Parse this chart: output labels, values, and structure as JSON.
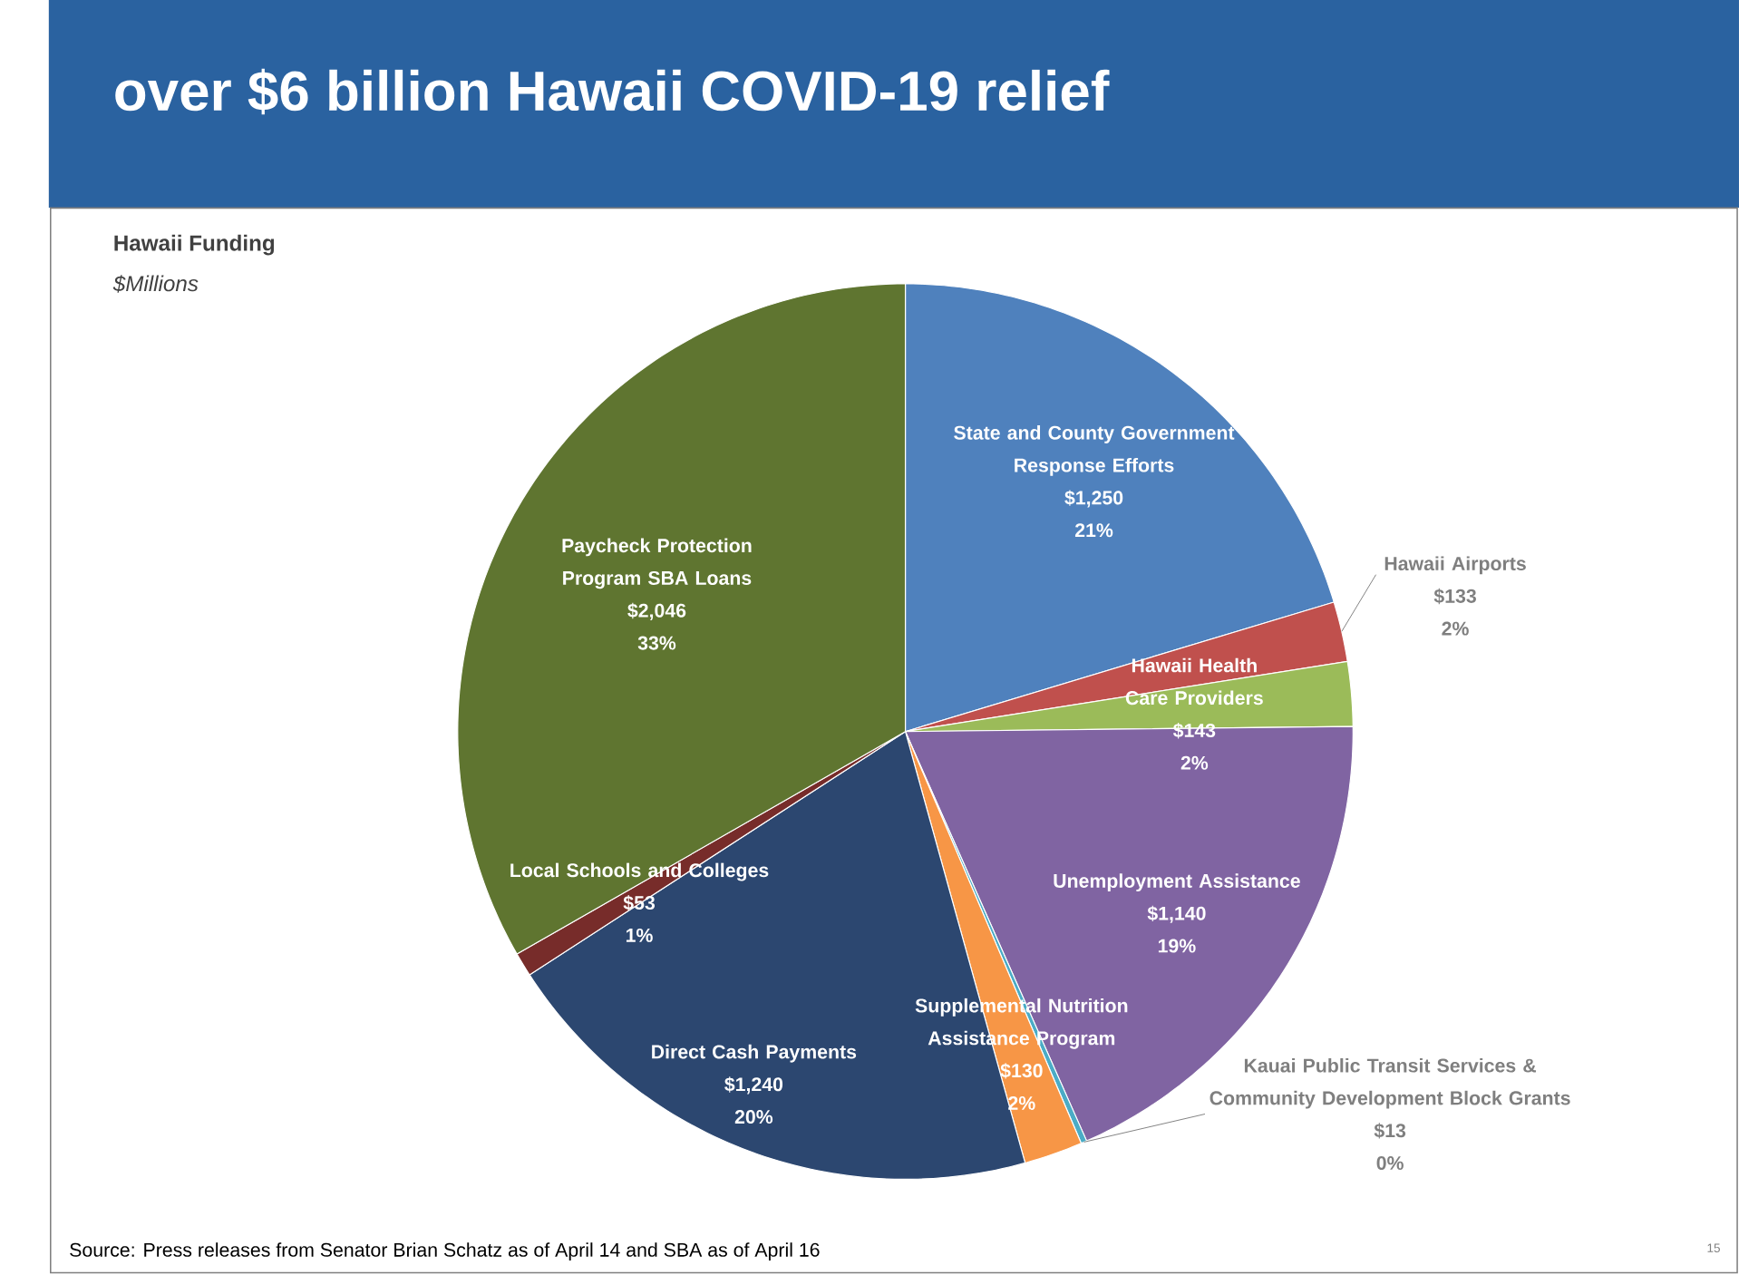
{
  "chart_data": {
    "type": "pie",
    "title": "over $6 billion Hawaii COVID-19 relief",
    "subtitle": "Hawaii Funding",
    "categories": [
      "State and County Government Response Efforts",
      "Hawaii Airports",
      "Hawaii Health Care Providers",
      "Unemployment Assistance",
      "Kauai Public Transit Services & Community Development Block Grants",
      "Supplemental Nutrition Assistance Program",
      "Direct Cash Payments",
      "Local Schools and Colleges",
      "Paycheck Protection Program SBA Loans"
    ],
    "values": [
      1250,
      133,
      143,
      1140,
      13,
      130,
      1240,
      53,
      2046
    ],
    "colors": [
      "#4f81bd",
      "#c0504d",
      "#9bbb59",
      "#8064a2",
      "#4bacc6",
      "#f79646",
      "#2c4770",
      "#772c2a",
      "#5f7530"
    ],
    "value_labels": [
      "$1,250",
      "$133",
      "$143",
      "$1,140",
      "$13",
      "$130",
      "$1,240",
      "$53",
      "$2,046"
    ],
    "annotations": [
      {
        "text": "21%",
        "x": "State and County Government Response Efforts"
      },
      {
        "text": "2%",
        "x": "Hawaii Airports"
      },
      {
        "text": "2%",
        "x": "Hawaii Health Care Providers"
      },
      {
        "text": "19%",
        "x": "Unemployment Assistance"
      },
      {
        "text": "0%",
        "x": "Kauai Public Transit Services & Community Development Block Grants"
      },
      {
        "text": "2%",
        "x": "Supplemental Nutrition Assistance Program"
      },
      {
        "text": "20%",
        "x": "Direct Cash Payments"
      },
      {
        "text": "1%",
        "x": "Local Schools and Colleges"
      },
      {
        "text": "33%",
        "x": "Paycheck Protection Program SBA Loans"
      },
      "$Millions",
      "Source: Press releases from Senator Brian Schatz as of April 14 and SBA as of April 16",
      "15"
    ]
  }
}
